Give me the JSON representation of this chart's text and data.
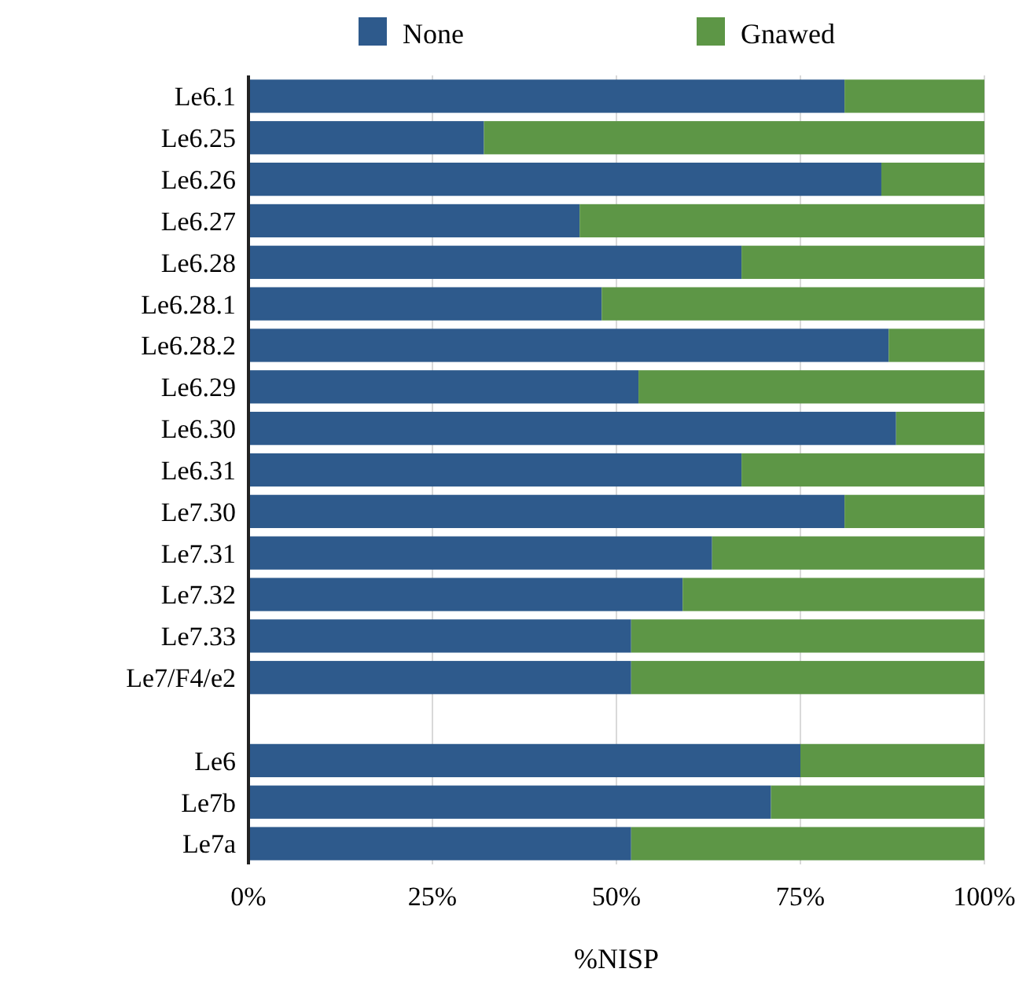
{
  "chart_data": {
    "type": "bar",
    "orientation": "horizontal",
    "stacked": true,
    "xlabel": "%NISP",
    "categories": [
      "Le6.1",
      "Le6.25",
      "Le6.26",
      "Le6.27",
      "Le6.28",
      "Le6.28.1",
      "Le6.28.2",
      "Le6.29",
      "Le6.30",
      "Le6.31",
      "Le7.30",
      "Le7.31",
      "Le7.32",
      "Le7.33",
      "Le7/F4/e2",
      null,
      "Le6",
      "Le7b",
      "Le7a"
    ],
    "series": [
      {
        "name": "None",
        "color": "#2e5a8c",
        "values": [
          81,
          32,
          86,
          45,
          67,
          48,
          87,
          53,
          88,
          67,
          81,
          63,
          59,
          52,
          52,
          null,
          75,
          71,
          52
        ]
      },
      {
        "name": "Gnawed",
        "color": "#5d9646",
        "values": [
          19,
          68,
          14,
          55,
          33,
          52,
          13,
          47,
          12,
          33,
          19,
          37,
          41,
          48,
          48,
          null,
          25,
          29,
          48
        ]
      }
    ],
    "xlim": [
      0,
      100
    ],
    "xticks": [
      {
        "value": 0,
        "label": "0%"
      },
      {
        "value": 25,
        "label": "25%"
      },
      {
        "value": 50,
        "label": "50%"
      },
      {
        "value": 75,
        "label": "75%"
      },
      {
        "value": 100,
        "label": "100%"
      }
    ],
    "grid": "x",
    "legend": "top"
  }
}
